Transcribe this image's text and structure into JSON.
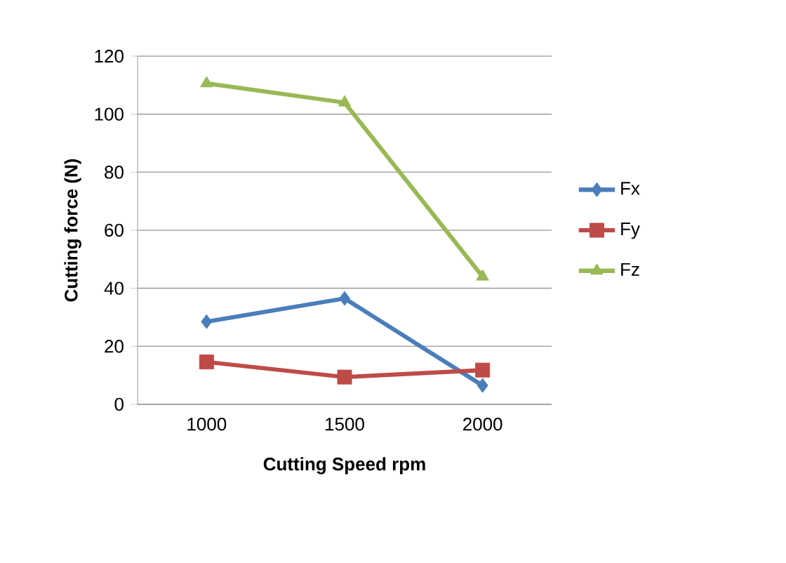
{
  "chart_data": {
    "type": "line",
    "xlabel": "Cutting Speed rpm",
    "ylabel": "Cutting force (N)",
    "categories": [
      "1000",
      "1500",
      "2000"
    ],
    "series": [
      {
        "name": "Fx",
        "color": "#4a7ebb",
        "marker": "diamond",
        "values": [
          28.5,
          36.5,
          6.5
        ]
      },
      {
        "name": "Fy",
        "color": "#be4b48",
        "marker": "square",
        "values": [
          14.6,
          9.4,
          11.8
        ]
      },
      {
        "name": "Fz",
        "color": "#98b954",
        "marker": "triangle",
        "values": [
          110.6,
          104,
          44
        ]
      }
    ],
    "ylim": [
      0,
      120
    ],
    "yticks": [
      0,
      20,
      40,
      60,
      80,
      100,
      120
    ],
    "grid": "y",
    "legend": "right",
    "line_style": "solid"
  }
}
